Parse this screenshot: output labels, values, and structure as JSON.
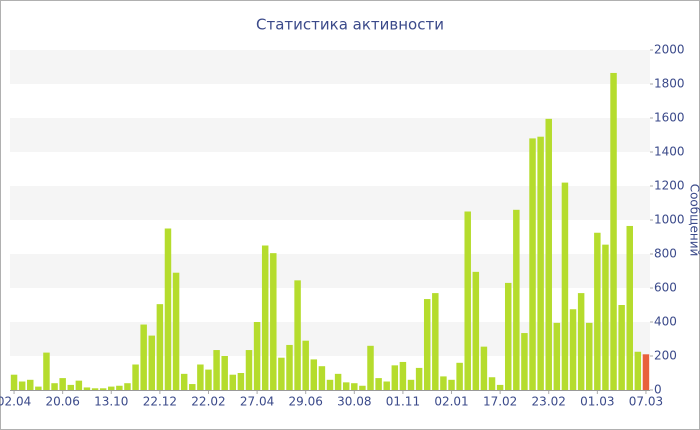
{
  "chart_data": {
    "type": "bar",
    "title": "Статистика активности",
    "y_axis_label": "Сообщений",
    "categories": [
      "02.04",
      null,
      null,
      null,
      null,
      null,
      "20.06",
      null,
      null,
      null,
      null,
      null,
      "13.10",
      null,
      null,
      null,
      null,
      null,
      "22.12",
      null,
      null,
      null,
      null,
      null,
      "22.02",
      null,
      null,
      null,
      null,
      null,
      "27.04",
      null,
      null,
      null,
      null,
      null,
      "29.06",
      null,
      null,
      null,
      null,
      null,
      "30.08",
      null,
      null,
      null,
      null,
      null,
      "01.11",
      null,
      null,
      null,
      null,
      null,
      "02.01",
      null,
      null,
      null,
      null,
      null,
      "17.02",
      null,
      null,
      null,
      null,
      null,
      "23.02",
      null,
      null,
      null,
      null,
      null,
      "01.03",
      null,
      null,
      null,
      null,
      null,
      "07.03"
    ],
    "values": [
      90,
      50,
      60,
      20,
      220,
      40,
      70,
      30,
      55,
      15,
      10,
      10,
      20,
      25,
      40,
      150,
      385,
      320,
      505,
      950,
      690,
      95,
      35,
      150,
      120,
      235,
      200,
      90,
      100,
      235,
      400,
      850,
      805,
      190,
      265,
      645,
      290,
      180,
      140,
      60,
      95,
      45,
      40,
      25,
      260,
      70,
      50,
      145,
      165,
      60,
      130,
      535,
      570,
      80,
      60,
      160,
      1050,
      695,
      255,
      75,
      30,
      630,
      1060,
      335,
      1480,
      1490,
      1595,
      395,
      1220,
      475,
      570,
      395,
      925,
      855,
      1865,
      500,
      965,
      225,
      210
    ],
    "color": "#b5dc2d",
    "last_color": "#e8603c",
    "ylim": [
      0,
      2000
    ],
    "yticks": [
      0,
      200,
      400,
      600,
      800,
      1000,
      1200,
      1400,
      1600,
      1800,
      2000
    ],
    "grid": true
  }
}
